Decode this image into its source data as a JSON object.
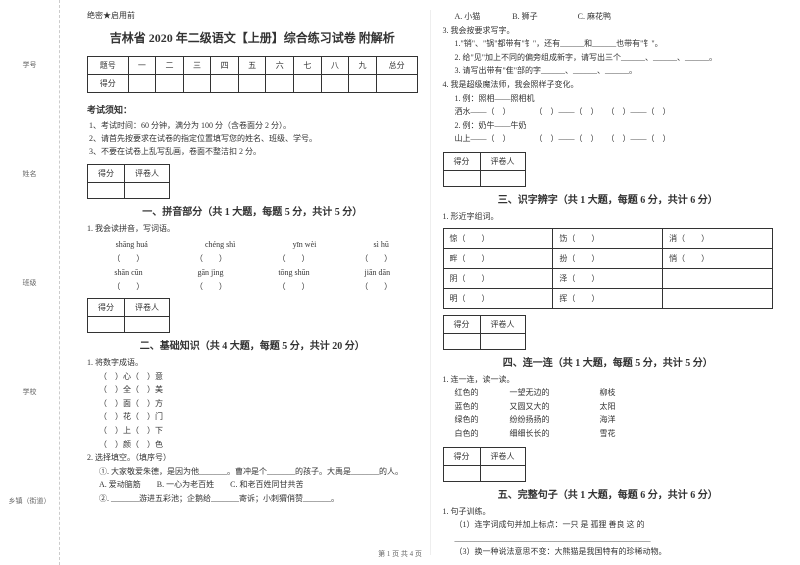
{
  "side": {
    "labels": [
      "学号",
      "姓名",
      "班级",
      "学校",
      "乡镇（街道）"
    ],
    "marks": [
      "题",
      "封",
      "密",
      "内",
      "线",
      "剪"
    ]
  },
  "header": {
    "confidential": "绝密★启用前",
    "title": "吉林省 2020 年二级语文【上册】综合练习试卷 附解析"
  },
  "score_table": {
    "row_labels": [
      "题号",
      "得分"
    ],
    "cols": [
      "一",
      "二",
      "三",
      "四",
      "五",
      "六",
      "七",
      "八",
      "九",
      "总分"
    ]
  },
  "notice": {
    "heading": "考试须知：",
    "items": [
      "1、考试时间：60 分钟，满分为 100 分（含卷面分 2 分）。",
      "2、请首先按要求在试卷的指定位置填写您的姓名、班级、学号。",
      "3、不要在试卷上乱写乱画，卷面不整洁扣 2 分。"
    ]
  },
  "mini_table": {
    "h1": "得分",
    "h2": "评卷人"
  },
  "section1": {
    "title": "一、拼音部分（共 1 大题，每题 5 分，共计 5 分）",
    "q1": "1. 我会读拼音，写词语。",
    "row1": [
      "shāng huá",
      "chéng shì",
      "yīn wèi",
      "sì hū"
    ],
    "row2": [
      "shān cūn",
      "gān jìng",
      "tōng shūn",
      "jiān dān"
    ],
    "bracket": "（　　）"
  },
  "section2": {
    "title": "二、基础知识（共 4 大题，每题 5 分，共计 20 分）",
    "q1": "1. 将数字成语。",
    "items": [
      "（　）心（　）意",
      "（　）全（　）美",
      "（　）面（　）方",
      "（　）花（　）门",
      "（　）上（　）下",
      "（　）颜（　）色"
    ],
    "q2": "2. 选择填空。（填序号）",
    "q2_lines": [
      "①. 大家敬爱朱德，是因为他_______。曹冲是个_______的孩子。大禹是_______的人。",
      "A. 爱动脑筋　　B. 一心为老百姓　　C. 和老百姓同甘共苦",
      "②. _______游进五彩池；企鹅给_______寄诉；小刺猬俏赞_______。"
    ],
    "opts": "A. 小猫　　　　B. 狮子　　　　　C. 麻花鸭",
    "q3": "3. 我会按要求写字。",
    "q3_lines": [
      "1.\"销\"、\"锅\"都带有\"钅\"，还有______和______也带有\"钅\"。",
      "2. 给\"见\"加上不同的偏旁组成新字，请写出三个______、______、______。",
      "3. 请写出带有\"隹\"部的字______、______、______。"
    ],
    "q4": "4. 我是超级魔法师，我会照样子变化。",
    "q4_lines": [
      "1. 例：照相——照相机",
      "洒水——（　）　　　　（　）——（　）　　（　）——（　）",
      "2. 例：奶牛——牛奶",
      "山上——（　）　　　　（　）——（　）　　（　）——（　）"
    ]
  },
  "section3": {
    "title": "三、识字辨字（共 1 大题，每题 6 分，共计 6 分）",
    "q1": "1. 形近字组词。",
    "rows": [
      [
        "惊（　　）",
        "饬（　　）",
        "消（　　）"
      ],
      [
        "畔（　　）",
        "扮（　　）",
        "悄（　　）"
      ],
      [
        "阴（　　）",
        "泽（　　）",
        ""
      ],
      [
        "明（　　）",
        "挥（　　）",
        ""
      ]
    ]
  },
  "section4": {
    "title": "四、连一连（共 1 大题，每题 5 分，共计 5 分）",
    "q1": "1. 连一连，读一读。",
    "rows": [
      [
        "红色的",
        "一望无边的",
        "柳枝"
      ],
      [
        "蓝色的",
        "又圆又大的",
        "太阳"
      ],
      [
        "绿色的",
        "纷纷扬扬的",
        "海洋"
      ],
      [
        "白色的",
        "细细长长的",
        "雪花"
      ]
    ]
  },
  "section5": {
    "title": "五、完整句子（共 1 大题，每题 6 分，共计 6 分）",
    "q1": "1. 句子训练。",
    "lines": [
      "（1）连字词成句并加上标点：一只 是 孤狸 善良 这 的",
      "_________________________________________________",
      "（3）换一种说法意思不变：大熊猫是我国特有的珍稀动物。"
    ]
  },
  "footer": "第 1 页 共 4 页"
}
